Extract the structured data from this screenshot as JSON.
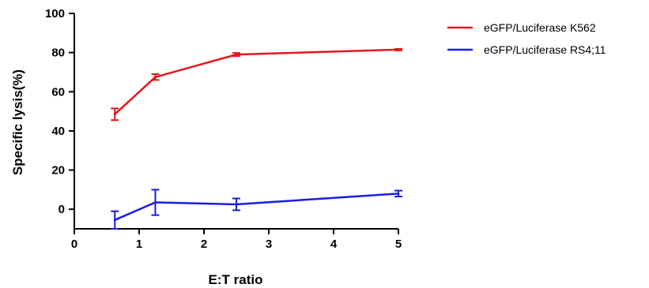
{
  "chart_data": {
    "type": "line",
    "xlabel": "E:T ratio",
    "ylabel": "Specific lysis(%)",
    "xlim": [
      0,
      5
    ],
    "ylim": [
      -10,
      100
    ],
    "xticks": [
      0,
      1,
      2,
      3,
      4,
      5
    ],
    "yticks": [
      0,
      20,
      40,
      60,
      80,
      100
    ],
    "grid": false,
    "legend_position": "top-right",
    "series": [
      {
        "name": "eGFP/Luciferase K562",
        "color": "#e8141b",
        "x": [
          0.625,
          1.25,
          2.5,
          5
        ],
        "y": [
          48.5,
          67.5,
          79,
          81.5
        ],
        "error": [
          3,
          1.5,
          0.8,
          0.4
        ]
      },
      {
        "name": "eGFP/Luciferase RS4;11",
        "color": "#1b1be8",
        "x": [
          0.625,
          1.25,
          2.5,
          5
        ],
        "y": [
          -5.5,
          3.5,
          2.5,
          8
        ],
        "error": [
          4.5,
          6.5,
          3,
          1.5
        ]
      }
    ]
  }
}
